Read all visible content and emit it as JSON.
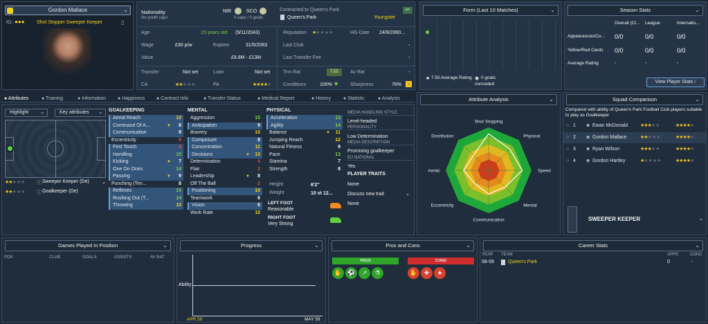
{
  "player": {
    "name": "Gordon Mallace",
    "ca_label": "IG:",
    "role": "Shot Stopper Sweeper Keeper"
  },
  "nat": {
    "label": "Nationality",
    "sub": "No youth caps",
    "nir": "NIR",
    "sco": "SCO",
    "caps": "0 caps / 0 goals"
  },
  "contract": {
    "label": "Contracted to Queen's Park",
    "club": "Queen's Park",
    "status": "Youngster",
    "badge": "PP"
  },
  "info": {
    "age_l": "Age",
    "age_v": "15 years old",
    "dob": "(9/11/2043)",
    "wage_l": "Wage",
    "wage_v": "£30 p/w",
    "exp_l": "Expires",
    "exp_v": "31/5/2063",
    "value_l": "Value",
    "value_v": "£9.8M - £13M",
    "transfer_l": "Transfer",
    "transfer_v": "Not set",
    "loan_l": "Loan",
    "loan_v": "Not set",
    "ca_l": "CA",
    "pa_l": "PA",
    "rep_l": "Reputation",
    "hg_l": "HG-Date",
    "hg_v": "24/9/2060...",
    "lastclub_l": "Last Club",
    "lastclub_v": "-",
    "ltf_l": "Last Transfer Fee",
    "ltf_v": "-",
    "trm_l": "Trm Rat",
    "trm_v": "7.55",
    "avrat_l": "Av Rat",
    "avrat_v": "-",
    "cond_l": "Conditions",
    "cond_v": "100%",
    "sharp_l": "Sharpness",
    "sharp_v": "76%"
  },
  "form": {
    "title": "Form (Last 10 Matches)",
    "avg": "7.50 Average Rating",
    "goals_v": "0 goals",
    "goals_sub": "conceded"
  },
  "season": {
    "title": "Season Stats",
    "cols": [
      "Overall (Cl...",
      "League",
      "Internatio..."
    ],
    "rows": [
      {
        "label": "Appearances/Co...",
        "v": [
          "0/0",
          "0/0",
          "0/0"
        ]
      },
      {
        "label": "Yellow/Red Cards",
        "v": [
          "0/0",
          "0/0",
          "0/0"
        ]
      },
      {
        "label": "Average Rating",
        "v": [
          "-",
          "-",
          "-"
        ]
      }
    ],
    "button": "View Player Stats"
  },
  "tabs": [
    "Attributes",
    "Training",
    "Information",
    "Happiness",
    "Contract Info",
    "Transfer Status",
    "Medical Report",
    "History",
    "Statistic",
    "Analysis"
  ],
  "controls": {
    "highlight": "Highlight",
    "key": "Key attributes"
  },
  "positions": [
    {
      "name": "Sweeper Keeper (De)"
    },
    {
      "name": "Goalkeeper (De)"
    }
  ],
  "gk": {
    "title": "GOALKEEPING",
    "items": [
      {
        "n": "Aerial Reach",
        "v": "10",
        "c": "yellow",
        "h": true
      },
      {
        "n": "Command Of A...",
        "v": "8",
        "c": "val",
        "h": true,
        "a": true
      },
      {
        "n": "Communication",
        "v": "9",
        "c": "val",
        "h": true
      },
      {
        "n": "Eccentricity",
        "v": "8",
        "c": "red",
        "h": false
      },
      {
        "n": "First Touch",
        "v": "4",
        "c": "red",
        "h": true
      },
      {
        "n": "Handling",
        "v": "15",
        "c": "green",
        "h": true
      },
      {
        "n": "Kicking",
        "v": "7",
        "c": "val",
        "h": true,
        "a": true
      },
      {
        "n": "One On Ones",
        "v": "14",
        "c": "green",
        "h": true
      },
      {
        "n": "Passing",
        "v": "9",
        "c": "val",
        "h": true,
        "a": true
      },
      {
        "n": "Punching (Ten...",
        "v": "8",
        "c": "val",
        "h": false
      },
      {
        "n": "Reflexes",
        "v": "15",
        "c": "green",
        "h": true
      },
      {
        "n": "Rushing Out (T...",
        "v": "14",
        "c": "green",
        "h": true
      },
      {
        "n": "Throwing",
        "v": "10",
        "c": "yellow",
        "h": true
      }
    ]
  },
  "mental": {
    "title": "MENTAL",
    "items": [
      {
        "n": "Aggression",
        "v": "15",
        "c": "green",
        "h": false
      },
      {
        "n": "Anticipation",
        "v": "9",
        "c": "val",
        "h": true
      },
      {
        "n": "Bravery",
        "v": "10",
        "c": "yellow",
        "h": false
      },
      {
        "n": "Composure",
        "v": "8",
        "c": "val",
        "h": true
      },
      {
        "n": "Concentration",
        "v": "11",
        "c": "yellow",
        "h": true
      },
      {
        "n": "Decisions",
        "v": "10",
        "c": "yellow",
        "h": true,
        "a": true
      },
      {
        "n": "Determination",
        "v": "4",
        "c": "red",
        "h": false
      },
      {
        "n": "Flair",
        "v": "2",
        "c": "red",
        "h": false
      },
      {
        "n": "Leadership",
        "v": "8",
        "c": "val",
        "h": false,
        "a": true
      },
      {
        "n": "Off The Ball",
        "v": "2",
        "c": "red",
        "h": false
      },
      {
        "n": "Positioning",
        "v": "10",
        "c": "yellow",
        "h": true
      },
      {
        "n": "Teamwork",
        "v": "6",
        "c": "val",
        "h": false
      },
      {
        "n": "Vision",
        "v": "6",
        "c": "val",
        "h": true
      },
      {
        "n": "Work Rate",
        "v": "10",
        "c": "yellow",
        "h": false
      }
    ]
  },
  "physical": {
    "title": "PHYSICAL",
    "items": [
      {
        "n": "Acceleration",
        "v": "13",
        "c": "green",
        "h": true
      },
      {
        "n": "Agility",
        "v": "14",
        "c": "green",
        "h": true
      },
      {
        "n": "Balance",
        "v": "11",
        "c": "yellow",
        "h": false,
        "a": true
      },
      {
        "n": "Jumping Reach",
        "v": "12",
        "c": "yellow",
        "h": false
      },
      {
        "n": "Natural Fitness",
        "v": "9",
        "c": "val",
        "h": false
      },
      {
        "n": "Pace",
        "v": "13",
        "c": "green",
        "h": false
      },
      {
        "n": "Stamina",
        "v": "7",
        "c": "val",
        "h": false
      },
      {
        "n": "Strength",
        "v": "8",
        "c": "val",
        "h": false
      }
    ]
  },
  "body": {
    "height_l": "Height",
    "height_v": "6'2\"",
    "weight_l": "Weight",
    "weight_v": "10 st 12...",
    "lf_l": "LEFT FOOT",
    "lf_v": "Reasonable",
    "rf_l": "RIGHT FOOT",
    "rf_v": "Very Strong"
  },
  "media": {
    "style_l": "MEDIA HANDLING STYLE",
    "style_v": "Level-headed",
    "pers_l": "PERSONALITY",
    "pers_v": "Low Determination",
    "desc_l": "MEDIA DESCRIPTION",
    "desc_v": "Promising goalkeeper",
    "eu_l": "EU NATIONAL",
    "eu_v": "Yes",
    "traits_l": "PLAYER TRAITS",
    "traits_v": "None",
    "discuss": "Discuss new trait",
    "none2": "None"
  },
  "analysis": {
    "title": "Attribute Analysis",
    "labels": [
      "Shot Stopping",
      "Physical",
      "Speed",
      "Mental",
      "Communication",
      "Eccentricity",
      "Aerial",
      "Distribution"
    ],
    "values": [
      0.85,
      0.7,
      0.78,
      0.55,
      0.55,
      0.45,
      0.58,
      0.5
    ]
  },
  "squad": {
    "title": "Squad Comparison",
    "desc": "Compared with ability of Queen's Park Football Club players suitable to play as Goalkeeper",
    "rows": [
      {
        "r": "1",
        "n": "Ewan McDonald",
        "ca": 3,
        "pa": 4
      },
      {
        "r": "2",
        "n": "Gordon Mallace",
        "ca": 2,
        "pa": 4
      },
      {
        "r": "3",
        "n": "Ryan Wilson",
        "ca": 3,
        "pa": 4
      },
      {
        "r": "4",
        "n": "Gordon Hartley",
        "ca": 1,
        "pa": 4
      }
    ],
    "role": "SWEEPER KEEPER"
  },
  "games": {
    "title": "Games Played In Position",
    "cols": [
      "POS",
      "CLUB",
      "GOALS",
      "ASSISTS",
      "AV RAT"
    ]
  },
  "progress": {
    "title": "Progress",
    "ylabel": "Ability",
    "x0": "APR 59",
    "x1": "MAY 59"
  },
  "proscons": {
    "title": "Pros and Cons",
    "pros": "PROS",
    "cons": "CONS"
  },
  "career": {
    "title": "Career Stats",
    "cols": [
      "YEAR",
      "TEAM",
      "APPS",
      "CONC"
    ],
    "row": {
      "year": "58-59",
      "team": "Queen's Park",
      "apps": "0",
      "conc": "-"
    }
  }
}
